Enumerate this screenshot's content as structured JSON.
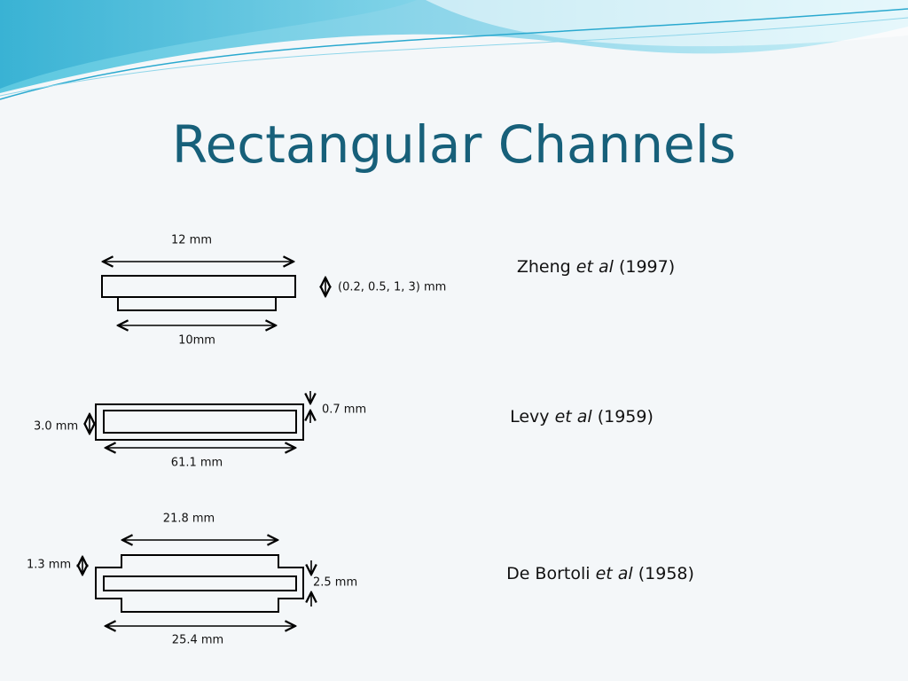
{
  "header": {
    "title": "Rectangular Channels"
  },
  "diagrams": [
    {
      "labels": [
        "12 mm",
        "10mm",
        "(0.2, 0.5, 1, 3) mm"
      ],
      "citation": {
        "author": "Zheng",
        "etal": "et al",
        "year": "(1997)"
      }
    },
    {
      "labels": [
        "0.7 mm",
        "3.0 mm",
        "61.1 mm"
      ],
      "citation": {
        "author": "Levy",
        "etal": "et al",
        "year": "(1959)"
      }
    },
    {
      "labels": [
        "21.8 mm",
        "1.3 mm",
        "2.5 mm",
        "25.4 mm"
      ],
      "citation": {
        "author": "De Bortoli",
        "etal": "et al",
        "year": "(1958)"
      }
    }
  ]
}
